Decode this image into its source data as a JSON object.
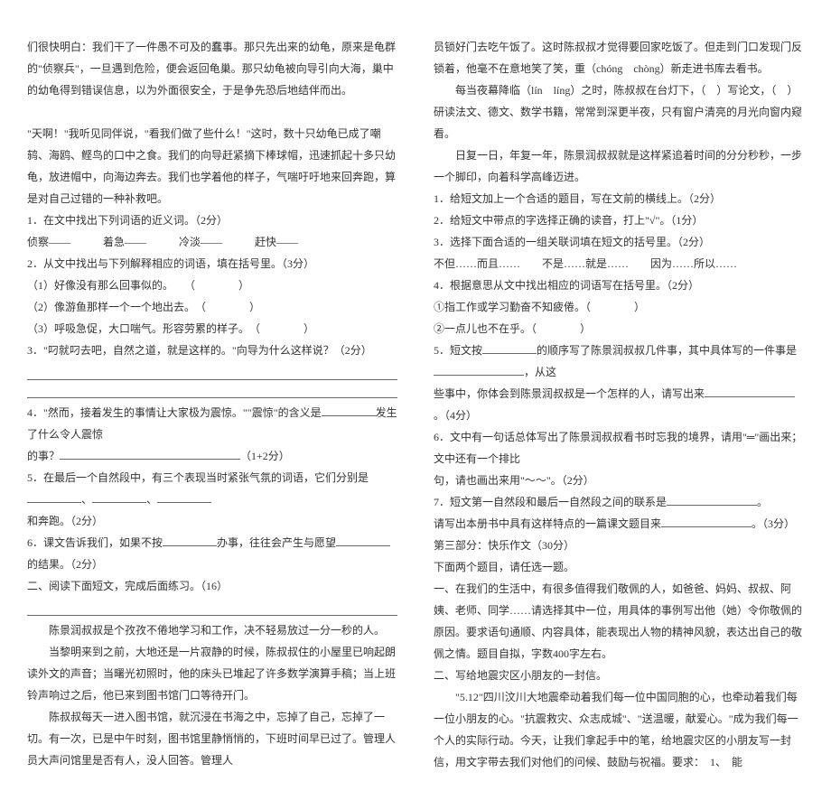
{
  "left": {
    "p1": "们很快明白：我们干了一件愚不可及的蠢事。那只先出来的幼龟，原来是龟群的\"侦察兵\"，一旦遇到危险，便会返回龟巢。那只幼龟被向导引向大海，巢中的幼龟得到错误信息，以为外面很安全，于是争先恐后地结伴而出。",
    "p2": "\"天啊！\"我听见同伴说，\"看我们做了些什么！\"这时，数十只幼龟已成了嘲鸫、海鸥、鲣鸟的口中之食。我们的向导赶紧摘下棒球帽，迅速抓起十多只幼龟，放进帽中，向海边奔去。我们也学着他的样子，气喘吁吁地来回奔跑，算是对自己过错的一种补救吧。",
    "q1_label": "1．在文中找出下列词语的近义词。（2分）",
    "q1_line": "侦察——　　　着急——　　　冷淡——　　　赶快——",
    "q2_label": "2．从文中找出与下列解释相应的词语，填在括号里。（3分）",
    "q2_a": "（1）好像没有那么回事似的。　　（　　　　）",
    "q2_b": "（2）像游鱼那样一个一个地出去。　（　　　　）",
    "q2_c": "（3）呼吸急促，大口喘气。形容劳累的样子。　（　　　　）",
    "q3": "3．\"叼就叼去吧，自然之道，就是这样的。\"向导为什么这样说？（2分）",
    "q4a": "4．\"然而，接着发生的事情让大家极为震惊。\"\"震惊\"的含义是",
    "q4b": "发生了什么令人震惊",
    "q4c": "的事？",
    "q4d": "（1+2分）",
    "q5a": "5．在最后一个自然段中，有三个表现当时紧张气氛的词语，它们分别是",
    "q5b": "和奔跑。（2分）",
    "q6a": "6．课文告诉我们，如果不按",
    "q6b": "办事，往往会产生与愿望",
    "q6c": "的结果。（2分）",
    "sec2": "二、阅读下面短文，完成后面练习。（16）",
    "p3": "　　陈景润叔叔是个孜孜不倦地学习和工作，决不轻易放过一分一秒的人。",
    "p4": "　　当黎明来到之前，大地还是一片寂静的时候，陈叔叔住的小屋里已响起朗读外文的声音；当曙光初照时，他的床头已堆起了许多数学演算手稿；当上班铃声响过之后，他已来到图书馆门口等待开门。",
    "p5": "　　陈叔叔每天一进入图书馆，就沉浸在书海之中，忘掉了自己，忘掉了一切。有一次，已是中午时刻，图书馆里静悄悄的，下班时间早已过了。管理人员大声问馆里是否有人，没人回答。管理人"
  },
  "right": {
    "p1": "员锁好门去吃午饭了。这时陈叔叔才觉得要回家吃饭了。但走到门口发现门反锁着，他毫不在意地笑了笑，重（chóng　chòng）新走进书库去看书。",
    "p2": "　　每当夜幕降临（lín　líng）之时，陈叔叔在台灯下，（　）写论文，（　）研读法文、德文、数学书籍，常常到深更半夜，只有窗户清亮的月光向窗内窥看。",
    "p3": "　　日复一日，年复一年，陈景润叔叔就是这样紧追着时间的分分秒秒，一步一个脚印，向着科学高峰迈进。",
    "q1": "1．给短文加上一个合适的题目，写在文前的横线上。（2分）",
    "q2": "2．给短文中带点的字选择正确的读音，打上\"√\"。（1分）",
    "q3": "3．选择下面合适的一组关联词填在短文的括号里。（2分）",
    "q3_opts": "不但……而且……　　不是……就是……　　因为……所以……",
    "q4": "4．根据意思从文中找出相应的词语写在括号里。（2分）",
    "q4_a": "①指工作或学习勤奋不知疲倦。（　　　　）",
    "q4_b": "②一点儿也不在乎。（　　　　）",
    "q5a": "5．短文按",
    "q5b": "的顺序写了陈景润叔叔几件事，其中具体写的一件事是",
    "q5c": "，从这",
    "q5d": "些事中，你体会到陈景润叔叔是一个怎样的人，请写出来",
    "q5e": "。（4分）",
    "q6a": "6．文中有一句话总体写出了陈景润叔叔看书时忘我的境界，请用\"═\"画出来；文中还有一个排比",
    "q6b": "句，请也画出来用\"～～\"。（2分）",
    "q7a": "7．短文第一自然段和最后一自然段之间的联系是",
    "q7b": "。",
    "q7c": "请写出本册书中具有这样特点的一篇课文题目来",
    "q7d": "。（3分）",
    "sec3": "第三部分：快乐作文（30分）",
    "sec3b": "下面两个题目，请任选一题。",
    "t1a": "一、在我们的生活中，有很多值得我们敬佩的人，如爸爸、妈妈、叔叔、阿姨、老师、同学……请选择其中一位，用具体的事例写出他（她）令你敬佩的原因。要求语句通顺、内容具体，能表现出人物的精神风貌，表达出自己的敬佩之情。题目自拟，字数400字左右。",
    "t2a": "二、写给地震灾区小朋友的一封信。",
    "t2b": "　　\"5.12\"四川汶川大地震牵动着我们每一位中国同胞的心，也牵动着我们每一位小朋友的心。\"抗震救灾、众志成城\"、\"送温暖，献爱心。\"成为我们每一个人的实际行动。今天，让我们拿起手中的笔，给地震灾区的小朋友写一封信，用文字带去我们对他们的问候、鼓励与祝福。要求：　1、　能"
  }
}
